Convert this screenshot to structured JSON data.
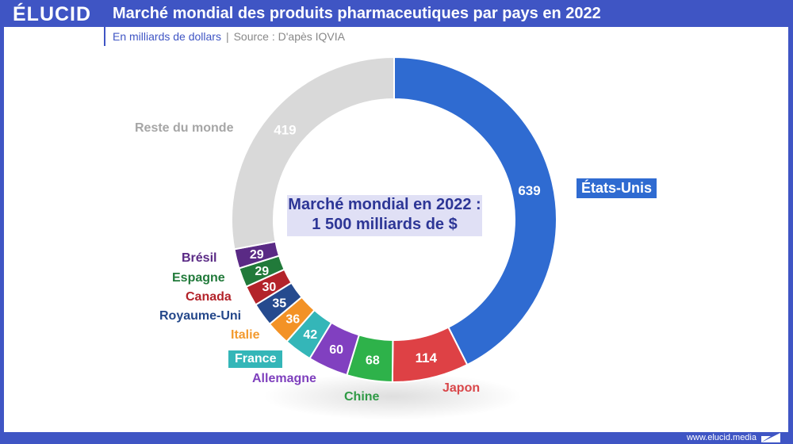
{
  "header": {
    "logo": "ÉLUCID",
    "title": "Marché mondial des produits pharmaceutiques par pays en 2022",
    "unit": "En milliards de dollars",
    "separator": "|",
    "source": "Source : D'apès IQVIA"
  },
  "center_label": {
    "line1": "Marché mondial en 2022 :",
    "line2": "1 500 milliards de $"
  },
  "footer": {
    "url": "www.elucid.media"
  },
  "colors": {
    "brand": "#3f55c4",
    "center_box_bg": "#e0e0f5",
    "center_box_text": "#2d3696"
  },
  "chart_data": {
    "type": "pie",
    "subtype": "donut",
    "title": "Marché mondial des produits pharmaceutiques par pays en 2022",
    "subtitle": "En milliards de dollars",
    "source": "D'apès IQVIA",
    "total_label": "1 500 milliards de $",
    "unit": "milliards de dollars",
    "categories": [
      "États-Unis",
      "Japon",
      "Chine",
      "Allemagne",
      "France",
      "Italie",
      "Royaume-Uni",
      "Canada",
      "Espagne",
      "Brésil",
      "Reste du monde"
    ],
    "values": [
      639,
      114,
      68,
      60,
      42,
      36,
      35,
      30,
      29,
      29,
      419
    ],
    "colors": [
      "#2f6bd1",
      "#de4145",
      "#2eb24a",
      "#8140c0",
      "#34b6b8",
      "#f39226",
      "#254a8e",
      "#b3232a",
      "#217a3a",
      "#5a2a85",
      "#d9d9d9"
    ],
    "label_colors": [
      "#ffffff",
      "#d9474a",
      "#2f9a45",
      "#7e3fbd",
      "#ffffff",
      "#f39a2e",
      "#24478a",
      "#b3232a",
      "#217a3a",
      "#5a2a85",
      "#a6a6a6"
    ],
    "start_angle_deg": 0,
    "direction": "clockwise",
    "legend_position": "labels-adjacent"
  }
}
